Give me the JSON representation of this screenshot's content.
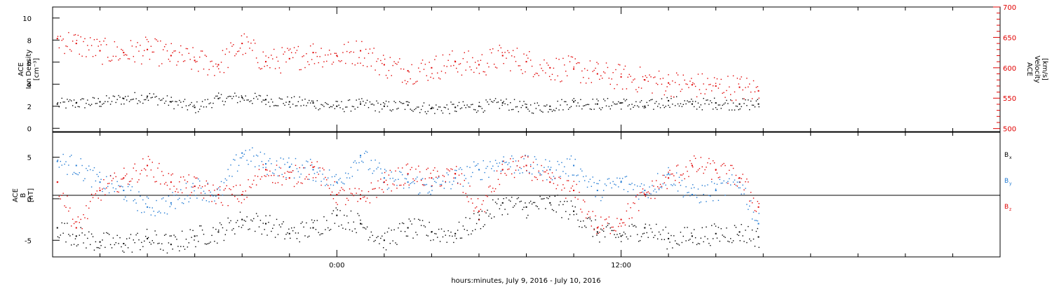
{
  "chart_data": [
    {
      "type": "scatter",
      "panel": "top",
      "ylabel_left_lines": [
        "ACE",
        "Ion Density",
        "[cm⁻³]"
      ],
      "ylabel_right_lines": [
        "ACE",
        "Velocity",
        "[km/s]"
      ],
      "left_axis": {
        "ylim": [
          -0.3,
          11
        ],
        "ticks": [
          0,
          2,
          4,
          6,
          8,
          10
        ],
        "color": "#000000"
      },
      "right_axis": {
        "ylim": [
          495,
          700
        ],
        "ticks": [
          500,
          550,
          600,
          650,
          700
        ],
        "color": "#e00000"
      },
      "series": [
        {
          "axis": "left",
          "color": "#000000",
          "x": [
            -11.8,
            -11,
            -10,
            -9,
            -8,
            -7,
            -6,
            -5,
            -4,
            -3,
            -2,
            -1,
            0,
            1,
            2,
            3,
            4,
            5,
            6,
            7,
            8,
            9,
            10,
            11,
            12,
            13,
            14,
            15,
            16,
            17,
            17.8
          ],
          "values": [
            2.2,
            2.3,
            2.4,
            2.7,
            2.9,
            2.4,
            1.9,
            2.7,
            2.8,
            2.6,
            2.4,
            2.3,
            2.0,
            2.2,
            2.0,
            2.1,
            1.8,
            1.9,
            2.0,
            2.3,
            1.9,
            2.0,
            2.4,
            2.2,
            2.3,
            2.0,
            2.5,
            2.2,
            2.3,
            2.2,
            2.2
          ]
        },
        {
          "axis": "right",
          "color": "#e00000",
          "x": [
            -11.8,
            -11,
            -10,
            -9,
            -8,
            -7,
            -6,
            -5,
            -4,
            -3,
            -2,
            -1,
            0,
            1,
            2,
            3,
            4,
            5,
            6,
            7,
            8,
            9,
            10,
            11,
            12,
            13,
            14,
            15,
            16,
            17,
            17.8
          ],
          "values": [
            648,
            640,
            628,
            625,
            630,
            620,
            612,
            605,
            640,
            610,
            615,
            625,
            620,
            628,
            605,
            595,
            600,
            610,
            605,
            620,
            610,
            600,
            598,
            590,
            585,
            580,
            575,
            572,
            570,
            568,
            562
          ]
        }
      ]
    },
    {
      "type": "scatter",
      "panel": "bottom",
      "ylabel_lines": [
        "ACE",
        "B",
        "[nT]"
      ],
      "ylim": [
        -7,
        8
      ],
      "ticks": [
        -5,
        0,
        5
      ],
      "zero_line": true,
      "legend": [
        {
          "label": "Bx",
          "base": "B",
          "sub": "x",
          "color": "#000000"
        },
        {
          "label": "By",
          "base": "B",
          "sub": "y",
          "color": "#1e78d2"
        },
        {
          "label": "Bz",
          "base": "B",
          "sub": "z",
          "color": "#e00000"
        }
      ],
      "series": [
        {
          "name": "Bx",
          "color": "#000000",
          "x": [
            -11.8,
            -11,
            -10,
            -9,
            -8,
            -7,
            -6,
            -5,
            -4,
            -3,
            -2,
            -1,
            0,
            1,
            2,
            3,
            4,
            5,
            6,
            7,
            8,
            9,
            10,
            11,
            12,
            13,
            14,
            15,
            16,
            17,
            17.8
          ],
          "values": [
            -3.5,
            -4.5,
            -5.2,
            -5.4,
            -4.8,
            -5.5,
            -4.5,
            -4.0,
            -2.5,
            -3.0,
            -4.2,
            -3.5,
            -2.0,
            -3.0,
            -5.0,
            -3.5,
            -4.0,
            -4.2,
            -2.5,
            -0.5,
            -1.0,
            -0.5,
            -1.5,
            -4.0,
            -4.5,
            -3.5,
            -4.8,
            -4.5,
            -4.2,
            -4.0,
            -4.6
          ]
        },
        {
          "name": "By",
          "color": "#1e78d2",
          "x": [
            -11.8,
            -11,
            -10,
            -9,
            -8,
            -7,
            -6,
            -5,
            -4,
            -3,
            -2,
            -1,
            0,
            1,
            2,
            3,
            4,
            5,
            6,
            7,
            8,
            9,
            10,
            11,
            12,
            13,
            14,
            15,
            16,
            17,
            17.8
          ],
          "values": [
            4.5,
            4.0,
            2.0,
            1.0,
            -1.0,
            -0.5,
            1.5,
            0.5,
            5.5,
            4.2,
            3.8,
            3.5,
            2.0,
            5.2,
            2.5,
            2.0,
            1.5,
            2.5,
            3.5,
            4.5,
            4.0,
            3.5,
            4.0,
            1.0,
            2.0,
            1.0,
            3.0,
            0.5,
            1.0,
            2.0,
            -3.0
          ]
        },
        {
          "name": "Bz",
          "color": "#e00000",
          "x": [
            -11.8,
            -11,
            -10,
            -9,
            -8,
            -7,
            -6,
            -5,
            -4,
            -3,
            -2,
            -1,
            0,
            1,
            2,
            3,
            4,
            5,
            6,
            7,
            8,
            9,
            10,
            11,
            12,
            13,
            14,
            15,
            16,
            17,
            17.8
          ],
          "values": [
            2.0,
            -3.5,
            1.0,
            2.5,
            4.0,
            2.0,
            1.5,
            0.5,
            0.5,
            3.5,
            2.5,
            3.8,
            0.5,
            0.0,
            2.0,
            3.0,
            2.5,
            3.0,
            -1.5,
            3.5,
            4.0,
            2.0,
            1.0,
            -3.5,
            -2.5,
            0.5,
            2.5,
            4.0,
            3.5,
            2.5,
            -1.0
          ]
        }
      ]
    }
  ],
  "x_axis": {
    "xlim": [
      -12,
      28
    ],
    "major_ticks": [
      0,
      12
    ],
    "major_labels": [
      "0:00",
      "12:00"
    ],
    "minor_ticks": [
      -10,
      -8,
      -6,
      -4,
      -2,
      2,
      4,
      6,
      8,
      10,
      14,
      16,
      18,
      20,
      22,
      24,
      26
    ],
    "xlabel": "hours:minutes, July  9, 2016 - July 10, 2016"
  }
}
